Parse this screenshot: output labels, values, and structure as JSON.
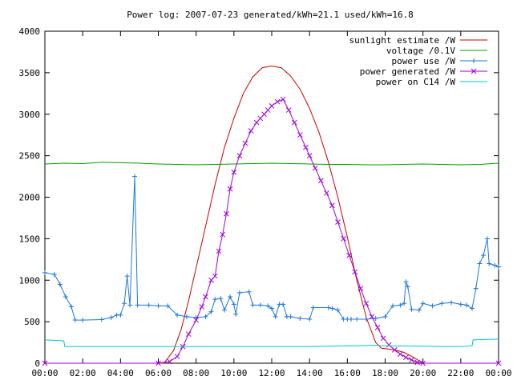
{
  "chart_data": {
    "type": "line",
    "title": "Power log: 2007-07-23 generated/kWh=21.1 used/kWh=16.8",
    "xlabel": "",
    "ylabel": "",
    "xlim": [
      0,
      24
    ],
    "ylim": [
      0,
      4000
    ],
    "x_ticks": [
      0,
      2,
      4,
      6,
      8,
      10,
      12,
      14,
      16,
      18,
      20,
      22,
      24
    ],
    "x_tick_labels": [
      "00:00",
      "02:00",
      "04:00",
      "06:00",
      "08:00",
      "10:00",
      "12:00",
      "14:00",
      "16:00",
      "18:00",
      "20:00",
      "22:00",
      "00:00"
    ],
    "y_ticks": [
      0,
      500,
      1000,
      1500,
      2000,
      2500,
      3000,
      3500,
      4000
    ],
    "y_tick_labels": [
      "0",
      "500",
      "1000",
      "1500",
      "2000",
      "2500",
      "3000",
      "3500",
      "4000"
    ],
    "grid": false,
    "legend_position": "top-right",
    "series": [
      {
        "name": "sunlight estimate /W",
        "color": "#cc0000",
        "marker": "none",
        "points": [
          [
            0,
            0
          ],
          [
            6.3,
            0
          ],
          [
            6.8,
            150
          ],
          [
            7.2,
            400
          ],
          [
            7.6,
            750
          ],
          [
            8,
            1150
          ],
          [
            8.5,
            1650
          ],
          [
            9,
            2150
          ],
          [
            9.5,
            2600
          ],
          [
            10,
            2950
          ],
          [
            10.5,
            3250
          ],
          [
            11,
            3450
          ],
          [
            11.5,
            3560
          ],
          [
            12,
            3580
          ],
          [
            12.5,
            3560
          ],
          [
            13,
            3460
          ],
          [
            13.5,
            3300
          ],
          [
            14,
            3070
          ],
          [
            14.5,
            2780
          ],
          [
            15,
            2420
          ],
          [
            15.5,
            2000
          ],
          [
            16,
            1520
          ],
          [
            16.5,
            1000
          ],
          [
            17,
            550
          ],
          [
            17.5,
            250
          ],
          [
            17.8,
            180
          ],
          [
            18,
            175
          ],
          [
            18.5,
            160
          ],
          [
            19,
            130
          ],
          [
            19.5,
            70
          ],
          [
            20,
            0
          ],
          [
            24,
            0
          ]
        ]
      },
      {
        "name": "voltage /0.1V",
        "color": "#00a000",
        "marker": "none",
        "points": [
          [
            0,
            2400
          ],
          [
            1,
            2410
          ],
          [
            2,
            2405
          ],
          [
            3,
            2420
          ],
          [
            4,
            2415
          ],
          [
            5,
            2410
          ],
          [
            6,
            2400
          ],
          [
            7,
            2395
          ],
          [
            8,
            2390
          ],
          [
            9,
            2395
          ],
          [
            10,
            2400
          ],
          [
            11,
            2405
          ],
          [
            12,
            2410
          ],
          [
            13,
            2405
          ],
          [
            14,
            2400
          ],
          [
            15,
            2395
          ],
          [
            16,
            2395
          ],
          [
            17,
            2390
          ],
          [
            18,
            2390
          ],
          [
            19,
            2395
          ],
          [
            20,
            2400
          ],
          [
            21,
            2395
          ],
          [
            22,
            2390
          ],
          [
            23,
            2395
          ],
          [
            24,
            2410
          ]
        ]
      },
      {
        "name": "power use /W",
        "color": "#1e78d8",
        "marker": "plus",
        "points": [
          [
            0,
            1090
          ],
          [
            0.5,
            1070
          ],
          [
            0.8,
            950
          ],
          [
            1.1,
            800
          ],
          [
            1.4,
            680
          ],
          [
            1.6,
            520
          ],
          [
            2,
            520
          ],
          [
            3,
            525
          ],
          [
            3.5,
            550
          ],
          [
            3.8,
            580
          ],
          [
            4,
            580
          ],
          [
            4.2,
            720
          ],
          [
            4.35,
            1050
          ],
          [
            4.5,
            700
          ],
          [
            4.75,
            2250
          ],
          [
            4.9,
            700
          ],
          [
            5.5,
            700
          ],
          [
            6,
            690
          ],
          [
            6.5,
            690
          ],
          [
            7,
            580
          ],
          [
            7.5,
            560
          ],
          [
            8,
            550
          ],
          [
            8.5,
            560
          ],
          [
            8.8,
            620
          ],
          [
            9,
            770
          ],
          [
            9.3,
            780
          ],
          [
            9.5,
            640
          ],
          [
            9.8,
            800
          ],
          [
            10,
            710
          ],
          [
            10.1,
            590
          ],
          [
            10.3,
            850
          ],
          [
            10.8,
            860
          ],
          [
            11,
            700
          ],
          [
            11.4,
            700
          ],
          [
            11.8,
            690
          ],
          [
            12,
            660
          ],
          [
            12.2,
            560
          ],
          [
            12.4,
            710
          ],
          [
            12.6,
            710
          ],
          [
            12.8,
            560
          ],
          [
            13,
            560
          ],
          [
            13.5,
            540
          ],
          [
            14,
            530
          ],
          [
            14.2,
            670
          ],
          [
            15,
            670
          ],
          [
            15.2,
            660
          ],
          [
            15.5,
            640
          ],
          [
            15.8,
            530
          ],
          [
            16,
            530
          ],
          [
            16.2,
            530
          ],
          [
            16.5,
            530
          ],
          [
            17,
            530
          ],
          [
            17.5,
            540
          ],
          [
            18,
            560
          ],
          [
            18.4,
            690
          ],
          [
            18.8,
            700
          ],
          [
            19,
            720
          ],
          [
            19.1,
            980
          ],
          [
            19.2,
            920
          ],
          [
            19.4,
            650
          ],
          [
            19.8,
            640
          ],
          [
            20,
            720
          ],
          [
            20.5,
            690
          ],
          [
            21,
            720
          ],
          [
            21.5,
            730
          ],
          [
            22,
            710
          ],
          [
            22.3,
            700
          ],
          [
            22.6,
            660
          ],
          [
            22.8,
            900
          ],
          [
            23,
            1200
          ],
          [
            23.2,
            1300
          ],
          [
            23.4,
            1500
          ],
          [
            23.5,
            1200
          ],
          [
            23.8,
            1180
          ],
          [
            24,
            1160
          ]
        ]
      },
      {
        "name": "power generated /W",
        "color": "#a000dc",
        "marker": "cross",
        "points": [
          [
            0,
            0
          ],
          [
            6,
            0
          ],
          [
            6.6,
            20
          ],
          [
            7,
            80
          ],
          [
            7.3,
            200
          ],
          [
            7.6,
            350
          ],
          [
            8,
            520
          ],
          [
            8.3,
            680
          ],
          [
            8.5,
            800
          ],
          [
            8.8,
            1000
          ],
          [
            9,
            1050
          ],
          [
            9.2,
            1350
          ],
          [
            9.4,
            1550
          ],
          [
            9.6,
            1800
          ],
          [
            9.8,
            2100
          ],
          [
            10,
            2300
          ],
          [
            10.3,
            2500
          ],
          [
            10.6,
            2650
          ],
          [
            10.9,
            2800
          ],
          [
            11.2,
            2900
          ],
          [
            11.4,
            2950
          ],
          [
            11.6,
            3000
          ],
          [
            11.8,
            3050
          ],
          [
            12,
            3100
          ],
          [
            12.3,
            3150
          ],
          [
            12.6,
            3180
          ],
          [
            12.9,
            3050
          ],
          [
            13.2,
            2900
          ],
          [
            13.5,
            2750
          ],
          [
            13.8,
            2600
          ],
          [
            14,
            2500
          ],
          [
            14.3,
            2350
          ],
          [
            14.6,
            2200
          ],
          [
            14.9,
            2050
          ],
          [
            15.2,
            1900
          ],
          [
            15.5,
            1700
          ],
          [
            15.8,
            1500
          ],
          [
            16.1,
            1300
          ],
          [
            16.4,
            1100
          ],
          [
            16.7,
            900
          ],
          [
            17,
            720
          ],
          [
            17.3,
            560
          ],
          [
            17.6,
            430
          ],
          [
            17.9,
            300
          ],
          [
            18.2,
            220
          ],
          [
            18.5,
            160
          ],
          [
            18.8,
            110
          ],
          [
            19.1,
            70
          ],
          [
            19.4,
            40
          ],
          [
            19.7,
            10
          ],
          [
            20,
            0
          ],
          [
            24,
            0
          ]
        ]
      },
      {
        "name": "power on C14 /W",
        "color": "#00c8c8",
        "marker": "none",
        "points": [
          [
            0,
            280
          ],
          [
            1,
            270
          ],
          [
            1.05,
            200
          ],
          [
            2,
            200
          ],
          [
            4,
            200
          ],
          [
            6,
            200
          ],
          [
            8,
            200
          ],
          [
            10,
            200
          ],
          [
            12,
            200
          ],
          [
            14,
            200
          ],
          [
            16,
            210
          ],
          [
            17.5,
            215
          ],
          [
            18,
            210
          ],
          [
            20,
            205
          ],
          [
            21,
            200
          ],
          [
            22,
            200
          ],
          [
            22.6,
            210
          ],
          [
            22.65,
            280
          ],
          [
            24,
            290
          ]
        ]
      }
    ]
  }
}
